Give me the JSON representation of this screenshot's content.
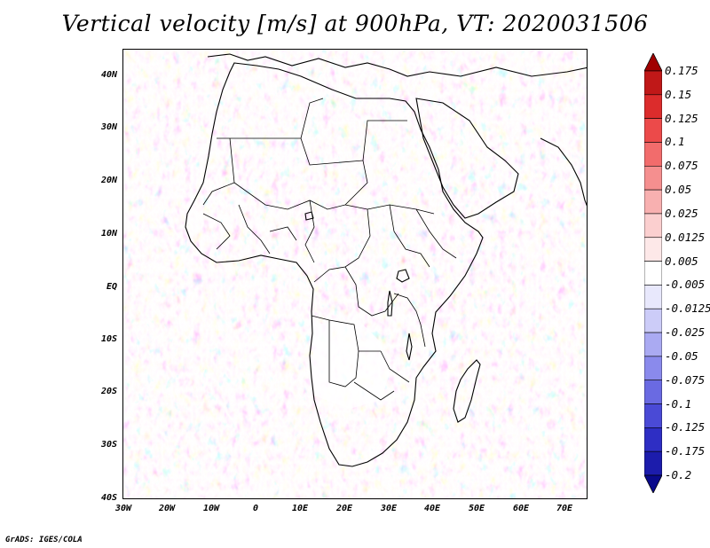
{
  "title": "Vertical velocity [m/s] at 900hPa, VT: 2020031506",
  "credit": "GrADS: IGES/COLA",
  "map": {
    "region": "Africa",
    "lat_labels": [
      "40N",
      "30N",
      "20N",
      "10N",
      "EQ",
      "10S",
      "20S",
      "30S",
      "40S"
    ],
    "lon_labels": [
      "30W",
      "20W",
      "10W",
      "0",
      "10E",
      "20E",
      "30E",
      "40E",
      "50E",
      "60E",
      "70E"
    ]
  },
  "colorbar": {
    "labels": [
      "0.175",
      "0.15",
      "0.125",
      "0.1",
      "0.075",
      "0.05",
      "0.025",
      "0.0125",
      "0.005",
      "-0.005",
      "-0.0125",
      "-0.025",
      "-0.05",
      "-0.075",
      "-0.1",
      "-0.125",
      "-0.175",
      "-0.2"
    ],
    "colors": [
      "#a00000",
      "#c01818",
      "#dc2c2c",
      "#ec4a4a",
      "#f26c6c",
      "#f58f8f",
      "#f8b0b0",
      "#fbcfcf",
      "#fde8e8",
      "#ffffff",
      "#e8e8fc",
      "#ccccf8",
      "#aaaaf2",
      "#8a8aec",
      "#6a6ae2",
      "#4a4ad6",
      "#2e2ec4",
      "#1c1cac",
      "#0a0a8c"
    ]
  },
  "icons": {
    "colorbar_top": "triangle-up-icon",
    "colorbar_bottom": "triangle-down-icon"
  }
}
